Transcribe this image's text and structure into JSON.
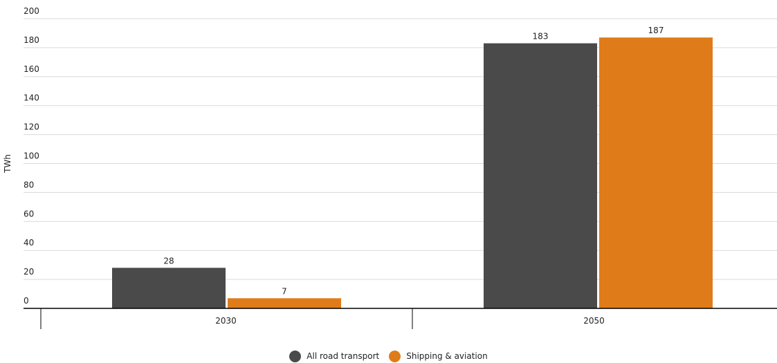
{
  "chart_data": {
    "type": "bar",
    "categories": [
      "2030",
      "2050"
    ],
    "series": [
      {
        "name": "All road transport",
        "color": "#4a4a4a",
        "values": [
          28,
          183
        ]
      },
      {
        "name": "Shipping & aviation",
        "color": "#e07b1a",
        "values": [
          7,
          187
        ]
      }
    ],
    "y_ticks": [
      "0",
      "20",
      "40",
      "60",
      "80",
      "100",
      "120",
      "140",
      "160",
      "180",
      "200"
    ],
    "ylabel": "TWh",
    "ylim": [
      0,
      200
    ],
    "grid": true,
    "legend_position": "bottom-center",
    "data_labels": true
  }
}
